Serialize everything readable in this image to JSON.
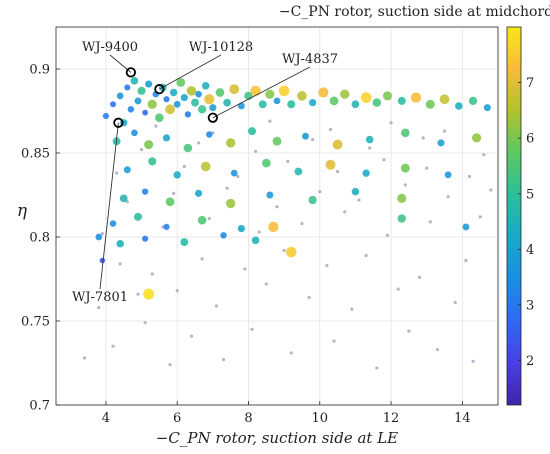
{
  "chart_data": {
    "type": "scatter",
    "title": "",
    "xlabel": "−C_PN rotor, suction side at LE",
    "ylabel": "η",
    "xlim": [
      2.6,
      15.0
    ],
    "ylim": [
      0.7,
      0.925
    ],
    "x_ticks": [
      4,
      6,
      8,
      10,
      12,
      14
    ],
    "y_ticks": [
      0.7,
      0.75,
      0.8,
      0.85,
      0.9
    ],
    "x_tick_labels": [
      "4",
      "6",
      "8",
      "10",
      "12",
      "14"
    ],
    "y_tick_labels": [
      "0.7",
      "0.75",
      "0.8",
      "0.85",
      "0.9"
    ],
    "grid": true,
    "colorbar": {
      "label": "−C_PN rotor, suction side at midchord",
      "range": [
        1.2,
        8.0
      ],
      "ticks": [
        2,
        3,
        4,
        5,
        6,
        7
      ],
      "tick_labels": [
        "2",
        "3",
        "4",
        "5",
        "6",
        "7"
      ],
      "colormap": [
        "#3e26a8",
        "#4a3fe3",
        "#2e6af3",
        "#1a8ee0",
        "#19a9c8",
        "#2cbe9a",
        "#5cc863",
        "#b0c32e",
        "#f7ba3c",
        "#f9e51a"
      ]
    },
    "series": [
      {
        "name": "",
        "style": "background",
        "color": "#b4b4cc",
        "points": [
          [
            3.4,
            0.728
          ],
          [
            4.2,
            0.735
          ],
          [
            5.1,
            0.749
          ],
          [
            5.8,
            0.724
          ],
          [
            6.4,
            0.741
          ],
          [
            7.3,
            0.727
          ],
          [
            8.1,
            0.745
          ],
          [
            9.2,
            0.731
          ],
          [
            10.4,
            0.738
          ],
          [
            11.6,
            0.722
          ],
          [
            12.5,
            0.744
          ],
          [
            13.3,
            0.733
          ],
          [
            14.3,
            0.726
          ],
          [
            3.8,
            0.758
          ],
          [
            4.9,
            0.766
          ],
          [
            6.0,
            0.768
          ],
          [
            7.1,
            0.759
          ],
          [
            8.5,
            0.772
          ],
          [
            9.7,
            0.764
          ],
          [
            10.9,
            0.757
          ],
          [
            12.2,
            0.769
          ],
          [
            13.8,
            0.761
          ],
          [
            4.4,
            0.784
          ],
          [
            5.3,
            0.778
          ],
          [
            6.7,
            0.787
          ],
          [
            7.9,
            0.781
          ],
          [
            9.0,
            0.792
          ],
          [
            10.2,
            0.783
          ],
          [
            11.3,
            0.789
          ],
          [
            12.8,
            0.776
          ],
          [
            14.1,
            0.786
          ],
          [
            3.9,
            0.802
          ],
          [
            5.6,
            0.806
          ],
          [
            6.9,
            0.811
          ],
          [
            8.3,
            0.803
          ],
          [
            9.5,
            0.808
          ],
          [
            10.7,
            0.815
          ],
          [
            11.9,
            0.801
          ],
          [
            13.1,
            0.809
          ],
          [
            14.5,
            0.812
          ],
          [
            4.6,
            0.821
          ],
          [
            5.9,
            0.826
          ],
          [
            7.4,
            0.829
          ],
          [
            8.8,
            0.818
          ],
          [
            10.0,
            0.827
          ],
          [
            11.1,
            0.822
          ],
          [
            12.4,
            0.831
          ],
          [
            13.6,
            0.824
          ],
          [
            14.8,
            0.828
          ],
          [
            4.3,
            0.838
          ],
          [
            6.2,
            0.842
          ],
          [
            7.7,
            0.836
          ],
          [
            9.1,
            0.845
          ],
          [
            10.5,
            0.839
          ],
          [
            11.8,
            0.846
          ],
          [
            13.0,
            0.841
          ],
          [
            14.2,
            0.836
          ],
          [
            5.0,
            0.852
          ],
          [
            6.6,
            0.856
          ],
          [
            8.2,
            0.851
          ],
          [
            9.8,
            0.858
          ],
          [
            11.4,
            0.853
          ],
          [
            12.9,
            0.859
          ],
          [
            14.6,
            0.849
          ],
          [
            5.4,
            0.866
          ],
          [
            7.0,
            0.862
          ],
          [
            8.6,
            0.869
          ],
          [
            10.3,
            0.864
          ],
          [
            12.0,
            0.868
          ],
          [
            13.5,
            0.863
          ]
        ]
      },
      {
        "name": "",
        "style": "colored",
        "points": [
          [
            4.0,
            0.872,
            3.1
          ],
          [
            4.2,
            0.879,
            2.8
          ],
          [
            4.4,
            0.884,
            3.6
          ],
          [
            4.5,
            0.868,
            4.2
          ],
          [
            4.6,
            0.889,
            2.9
          ],
          [
            4.7,
            0.876,
            3.3
          ],
          [
            4.8,
            0.893,
            4.5
          ],
          [
            4.9,
            0.881,
            3.8
          ],
          [
            5.0,
            0.887,
            5.1
          ],
          [
            5.1,
            0.874,
            2.6
          ],
          [
            5.2,
            0.891,
            4.0
          ],
          [
            5.3,
            0.879,
            6.2
          ],
          [
            5.4,
            0.885,
            3.4
          ],
          [
            5.5,
            0.871,
            5.5
          ],
          [
            5.6,
            0.889,
            4.7
          ],
          [
            5.7,
            0.882,
            3.0
          ],
          [
            5.8,
            0.876,
            6.8
          ],
          [
            5.9,
            0.886,
            4.3
          ],
          [
            6.0,
            0.879,
            3.7
          ],
          [
            6.1,
            0.892,
            5.8
          ],
          [
            6.2,
            0.883,
            4.1
          ],
          [
            6.3,
            0.873,
            3.2
          ],
          [
            6.4,
            0.887,
            6.5
          ],
          [
            6.5,
            0.88,
            4.9
          ],
          [
            6.6,
            0.885,
            3.5
          ],
          [
            6.7,
            0.876,
            5.2
          ],
          [
            6.8,
            0.89,
            4.4
          ],
          [
            6.9,
            0.882,
            7.1
          ],
          [
            7.0,
            0.877,
            3.9
          ],
          [
            7.2,
            0.886,
            5.6
          ],
          [
            7.4,
            0.88,
            4.6
          ],
          [
            7.6,
            0.888,
            6.9
          ],
          [
            7.8,
            0.878,
            3.8
          ],
          [
            8.0,
            0.884,
            5.3
          ],
          [
            8.2,
            0.887,
            7.4
          ],
          [
            8.4,
            0.879,
            4.8
          ],
          [
            8.6,
            0.885,
            6.1
          ],
          [
            8.8,
            0.881,
            3.6
          ],
          [
            9.0,
            0.887,
            7.6
          ],
          [
            9.2,
            0.879,
            5.0
          ],
          [
            9.5,
            0.884,
            6.6
          ],
          [
            9.8,
            0.88,
            4.2
          ],
          [
            10.1,
            0.886,
            7.2
          ],
          [
            10.4,
            0.881,
            5.7
          ],
          [
            10.7,
            0.885,
            6.3
          ],
          [
            11.0,
            0.879,
            4.6
          ],
          [
            11.3,
            0.883,
            7.7
          ],
          [
            11.6,
            0.88,
            5.4
          ],
          [
            11.9,
            0.884,
            6.0
          ],
          [
            12.3,
            0.881,
            4.9
          ],
          [
            12.7,
            0.883,
            7.3
          ],
          [
            13.1,
            0.879,
            5.9
          ],
          [
            13.5,
            0.882,
            6.7
          ],
          [
            13.9,
            0.878,
            4.4
          ],
          [
            14.3,
            0.881,
            5.2
          ],
          [
            14.7,
            0.877,
            3.9
          ],
          [
            4.3,
            0.857,
            4.8
          ],
          [
            4.8,
            0.862,
            3.5
          ],
          [
            5.2,
            0.855,
            6.0
          ],
          [
            5.7,
            0.859,
            4.1
          ],
          [
            6.3,
            0.853,
            5.4
          ],
          [
            6.9,
            0.861,
            3.3
          ],
          [
            7.5,
            0.856,
            6.4
          ],
          [
            8.1,
            0.863,
            4.9
          ],
          [
            8.8,
            0.857,
            5.8
          ],
          [
            9.6,
            0.86,
            3.8
          ],
          [
            10.5,
            0.855,
            6.9
          ],
          [
            11.4,
            0.858,
            4.5
          ],
          [
            12.4,
            0.862,
            5.5
          ],
          [
            13.4,
            0.856,
            4.0
          ],
          [
            14.4,
            0.859,
            6.2
          ],
          [
            4.6,
            0.84,
            3.9
          ],
          [
            5.3,
            0.845,
            5.1
          ],
          [
            6.0,
            0.837,
            4.3
          ],
          [
            6.8,
            0.842,
            6.6
          ],
          [
            7.6,
            0.838,
            3.6
          ],
          [
            8.5,
            0.844,
            5.6
          ],
          [
            9.4,
            0.839,
            4.7
          ],
          [
            10.3,
            0.843,
            7.0
          ],
          [
            11.3,
            0.838,
            4.2
          ],
          [
            12.4,
            0.841,
            5.9
          ],
          [
            13.6,
            0.837,
            3.7
          ],
          [
            4.5,
            0.823,
            4.6
          ],
          [
            5.1,
            0.827,
            3.2
          ],
          [
            5.8,
            0.821,
            5.7
          ],
          [
            6.6,
            0.826,
            4.0
          ],
          [
            7.5,
            0.82,
            6.3
          ],
          [
            8.6,
            0.825,
            3.8
          ],
          [
            9.8,
            0.822,
            5.2
          ],
          [
            11.0,
            0.827,
            4.4
          ],
          [
            12.3,
            0.823,
            6.1
          ],
          [
            4.2,
            0.808,
            3.4
          ],
          [
            4.9,
            0.812,
            4.9
          ],
          [
            5.7,
            0.806,
            3.1
          ],
          [
            6.7,
            0.81,
            5.5
          ],
          [
            7.8,
            0.805,
            4.1
          ],
          [
            8.7,
            0.806,
            7.3
          ],
          [
            3.8,
            0.8,
            3.5
          ],
          [
            3.9,
            0.786,
            2.4
          ],
          [
            4.4,
            0.796,
            4.4
          ],
          [
            5.1,
            0.799,
            3.0
          ],
          [
            6.2,
            0.797,
            4.8
          ],
          [
            9.2,
            0.791,
            7.5
          ],
          [
            5.2,
            0.766,
            7.9
          ],
          [
            7.3,
            0.801,
            3.3
          ],
          [
            8.2,
            0.798,
            4.5
          ],
          [
            12.3,
            0.811,
            5.3
          ],
          [
            14.1,
            0.806,
            3.7
          ]
        ]
      }
    ],
    "annotations": [
      {
        "label": "WJ-9400",
        "x": 4.7,
        "y": 0.898
      },
      {
        "label": "WJ-10128",
        "x": 5.5,
        "y": 0.888
      },
      {
        "label": "WJ-4837",
        "x": 7.0,
        "y": 0.871
      },
      {
        "label": "WJ-7801",
        "x": 4.35,
        "y": 0.868
      }
    ]
  }
}
